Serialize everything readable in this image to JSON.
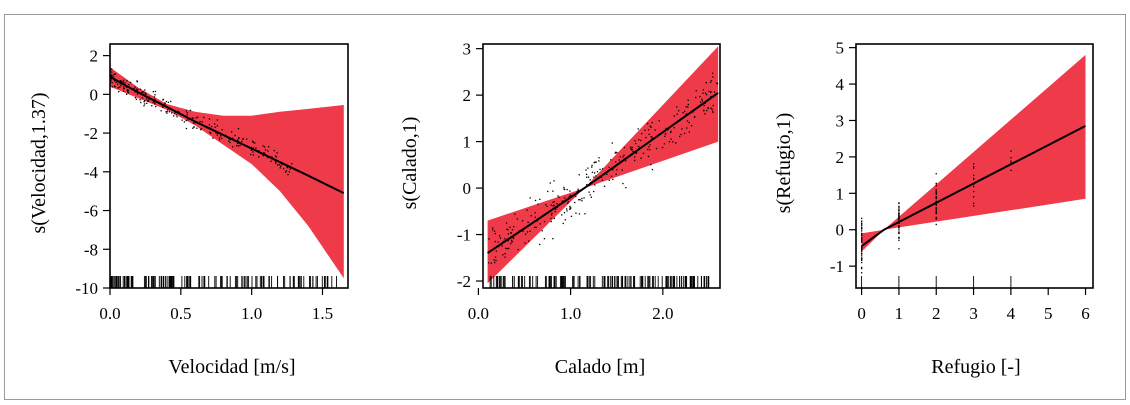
{
  "colors": {
    "band": "#ef3a4a",
    "line": "#000000",
    "points": "#000000"
  },
  "chart_data": [
    {
      "type": "line",
      "xlabel": "Velocidad [m/s]",
      "ylabel": "s(Velocidad,1.37)",
      "xlim": [
        0.0,
        1.68
      ],
      "ylim": [
        -10,
        2.6
      ],
      "xticks": [
        0.0,
        0.5,
        1.0,
        1.5
      ],
      "xtick_labels": [
        "0.0",
        "0.5",
        "1.0",
        "1.5"
      ],
      "yticks": [
        2,
        0,
        -2,
        -4,
        -6,
        -8,
        -10
      ],
      "ytick_labels": [
        "2",
        "0",
        "-2",
        "-4",
        "-6",
        "-8",
        "-10"
      ],
      "fit": {
        "x": [
          0.0,
          0.2,
          0.4,
          0.6,
          0.8,
          1.0,
          1.2,
          1.4,
          1.65
        ],
        "y": [
          0.9,
          0.1,
          -0.65,
          -1.4,
          -2.1,
          -2.8,
          -3.5,
          -4.2,
          -5.1
        ]
      },
      "band": {
        "x": [
          0.0,
          0.2,
          0.4,
          0.6,
          0.8,
          1.0,
          1.2,
          1.4,
          1.65
        ],
        "upper": [
          1.4,
          0.35,
          -0.5,
          -0.9,
          -1.1,
          -1.1,
          -0.9,
          -0.75,
          -0.55
        ],
        "lower": [
          0.4,
          -0.2,
          -0.8,
          -1.6,
          -2.6,
          -3.6,
          -5.0,
          -6.8,
          -9.5
        ]
      },
      "points_region": {
        "x": [
          0.0,
          1.3
        ],
        "spread": 0.9
      },
      "rug_range": [
        0.0,
        1.6
      ]
    },
    {
      "type": "line",
      "xlabel": "Calado [m]",
      "ylabel": "s(Calado,1)",
      "xlim": [
        0.05,
        2.62
      ],
      "ylim": [
        -2.15,
        3.1
      ],
      "xticks": [
        0.0,
        1.0,
        2.0
      ],
      "xtick_labels": [
        "0.0",
        "1.0",
        "2.0"
      ],
      "yticks": [
        3,
        2,
        1,
        0,
        -1,
        -2
      ],
      "ytick_labels": [
        "3",
        "2",
        "1",
        "0",
        "-1",
        "-2"
      ],
      "fit": {
        "x": [
          0.1,
          1.15,
          2.6
        ],
        "y": [
          -1.4,
          0.0,
          2.05
        ]
      },
      "band": {
        "x": [
          0.1,
          1.15,
          2.6
        ],
        "upper": [
          -0.7,
          0.0,
          3.05
        ],
        "lower": [
          -2.05,
          0.0,
          1.0
        ]
      },
      "points_region": {
        "x": [
          0.1,
          2.6
        ],
        "spread": 0.8
      },
      "rug_range": [
        0.1,
        2.55
      ]
    },
    {
      "type": "line",
      "xlabel": "Refugio [-]",
      "ylabel": "s(Refugio,1)",
      "xlim": [
        -0.15,
        6.2
      ],
      "ylim": [
        -1.6,
        5.1
      ],
      "xticks": [
        0,
        1,
        2,
        3,
        4,
        5,
        6
      ],
      "xtick_labels": [
        "0",
        "1",
        "2",
        "3",
        "4",
        "5",
        "6"
      ],
      "yticks": [
        5,
        4,
        3,
        2,
        1,
        0,
        -1
      ],
      "ytick_labels": [
        "5",
        "4",
        "3",
        "2",
        "1",
        "0",
        "-1"
      ],
      "fit": {
        "x": [
          0,
          0.6,
          6
        ],
        "y": [
          -0.45,
          0.0,
          2.85
        ]
      },
      "band": {
        "x": [
          0,
          0.6,
          6
        ],
        "upper": [
          -0.1,
          0.0,
          4.8
        ],
        "lower": [
          -0.6,
          0.0,
          0.85
        ]
      },
      "points_region": {
        "x": [
          0,
          4
        ],
        "spread": 1.0
      },
      "rug_range": [
        0,
        4
      ]
    }
  ]
}
